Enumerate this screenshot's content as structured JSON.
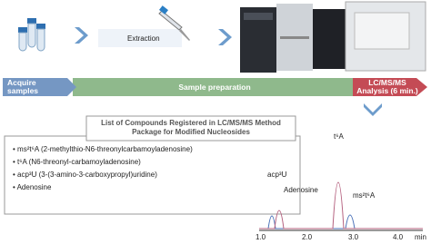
{
  "steps": {
    "extraction": "Extraction"
  },
  "stages": [
    "Acquire samples",
    "Sample preparation",
    "LC/MS/MS Analysis (6 min.)"
  ],
  "compound_list": {
    "title": "List of Compounds Registered in LC/MS/MS Method Package for Modified Nucleosides",
    "items": [
      "ms²t⁶A (2-methylthio-N6-threonylcarbamoyladenosine)",
      "t⁶A (N6-threonyl-carbamoyladenosine)",
      "acp³U (3-(3-amino-3-carboxypropyl)uridine)",
      "Adenosine"
    ]
  },
  "chromatogram": {
    "x_labels": [
      "1.0",
      "2.0",
      "3.0",
      "4.0"
    ],
    "x_unit": "min",
    "peaks": [
      "acp³U",
      "Adenosine",
      "t⁶A",
      "ms²t⁶A"
    ]
  }
}
